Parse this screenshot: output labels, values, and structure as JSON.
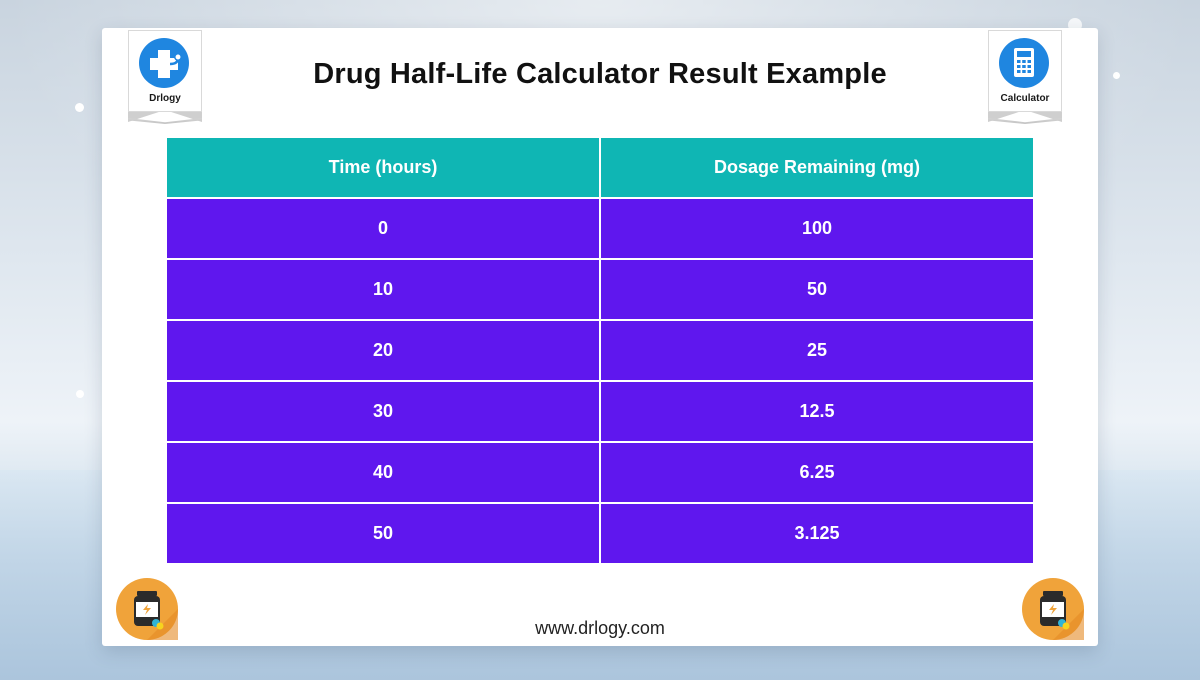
{
  "header": {
    "title": "Drug Half-Life Calculator Result Example"
  },
  "badges": {
    "left_label": "Drlogy",
    "right_label": "Calculator"
  },
  "table": {
    "columns": [
      "Time (hours)",
      "Dosage Remaining (mg)"
    ],
    "rows": [
      [
        "0",
        "100"
      ],
      [
        "10",
        "50"
      ],
      [
        "20",
        "25"
      ],
      [
        "30",
        "12.5"
      ],
      [
        "40",
        "6.25"
      ],
      [
        "50",
        "3.125"
      ]
    ]
  },
  "footer": {
    "url": "www.drlogy.com"
  },
  "colors": {
    "header_row": "#0fb6b4",
    "body_row": "#5f17ee",
    "brand_blue": "#1f86e0",
    "badge_orange": "#f0a33a"
  },
  "icons": {
    "left_logo": "medical-cross-stethoscope-icon",
    "right_logo": "calculator-icon",
    "bottom_left": "medicine-bottle-icon",
    "bottom_right": "medicine-bottle-icon"
  }
}
